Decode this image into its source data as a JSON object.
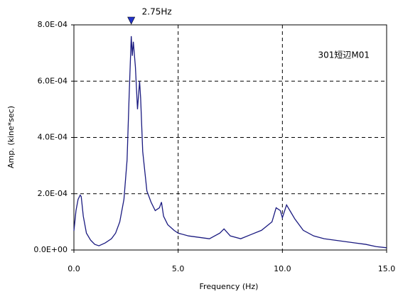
{
  "chart_data": {
    "type": "line",
    "x_label": "Frequency (Hz)",
    "y_label": "Amp. (kine*sec)",
    "annotation": "301短辺M01",
    "peak": {
      "x": 2.75,
      "label": "2.75Hz",
      "color": "#2233cc"
    },
    "x": [
      0,
      0.1,
      0.2,
      0.3,
      0.35,
      0.45,
      0.6,
      0.8,
      1.0,
      1.2,
      1.5,
      1.8,
      2.0,
      2.2,
      2.4,
      2.55,
      2.65,
      2.75,
      2.8,
      2.85,
      2.95,
      3.05,
      3.15,
      3.2,
      3.3,
      3.5,
      3.7,
      3.9,
      4.1,
      4.2,
      4.3,
      4.5,
      4.8,
      5.0,
      5.5,
      6.0,
      6.5,
      7.0,
      7.2,
      7.5,
      8.0,
      8.5,
      9.0,
      9.5,
      9.7,
      9.9,
      10.0,
      10.2,
      10.4,
      10.6,
      11.0,
      11.5,
      12.0,
      12.5,
      13.0,
      13.5,
      14.0,
      14.5,
      15.0
    ],
    "series": [
      {
        "name": "301短辺M01",
        "color": "#1a1a80",
        "values": [
          6.8e-05,
          0.00014,
          0.00018,
          0.000195,
          0.00019,
          0.00012,
          6e-05,
          3.5e-05,
          2e-05,
          1.5e-05,
          2.5e-05,
          4e-05,
          6e-05,
          0.0001,
          0.00018,
          0.00032,
          0.00055,
          0.00076,
          0.00069,
          0.00074,
          0.00065,
          0.0005,
          0.0006,
          0.00054,
          0.00035,
          0.00021,
          0.00017,
          0.00014,
          0.00015,
          0.00017,
          0.00012,
          9e-05,
          7e-05,
          6e-05,
          5e-05,
          4.5e-05,
          4e-05,
          6e-05,
          7.5e-05,
          5e-05,
          4e-05,
          5.5e-05,
          7e-05,
          0.0001,
          0.00015,
          0.00014,
          0.000115,
          0.00016,
          0.000135,
          0.00011,
          7e-05,
          5e-05,
          4e-05,
          3.5e-05,
          3e-05,
          2.5e-05,
          2e-05,
          1.2e-05,
          8e-06
        ]
      }
    ],
    "xlim": [
      0,
      15
    ],
    "xticks": [
      {
        "value": 0,
        "label": "0.0"
      },
      {
        "value": 5,
        "label": "5.0"
      },
      {
        "value": 10,
        "label": "10.0"
      },
      {
        "value": 15,
        "label": "15.0"
      }
    ],
    "ylim": [
      0,
      0.0008
    ],
    "yticks": [
      {
        "value": 0,
        "label": "0.0E+00"
      },
      {
        "value": 0.0002,
        "label": "2.0E-04"
      },
      {
        "value": 0.0004,
        "label": "4.0E-04"
      },
      {
        "value": 0.0006,
        "label": "6.0E-04"
      },
      {
        "value": 0.0008,
        "label": "8.0E-04"
      }
    ],
    "grid": true
  }
}
